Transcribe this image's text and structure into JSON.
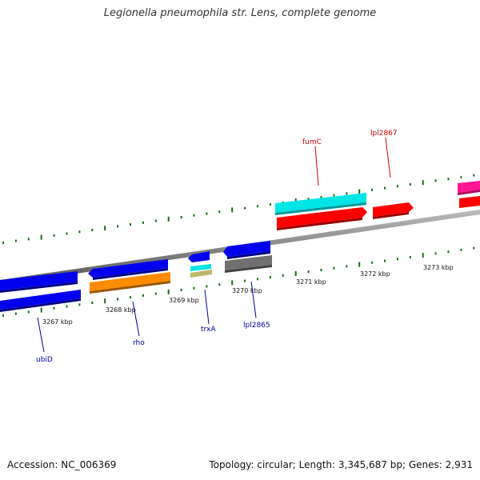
{
  "title": "Legionella pneumophila str. Lens, complete genome",
  "accession_label": "Accession: NC_006369",
  "topology_label": "Topology: circular; Length: 3,345,687 bp; Genes: 2,931",
  "kbp_labels": [
    "3267 kbp",
    "3268 kbp",
    "3269 kbp",
    "3270 kbp",
    "3271 kbp",
    "3272 kbp",
    "3273 kbp"
  ],
  "genes_top": [
    {
      "name": "fumC",
      "color": "#cc0000"
    },
    {
      "name": "lpl2867",
      "color": "#cc0000"
    }
  ],
  "genes_bottom": [
    {
      "name": "ubiD",
      "color": "#0000aa"
    },
    {
      "name": "rho",
      "color": "#0000aa"
    },
    {
      "name": "trxA",
      "color": "#0000aa"
    },
    {
      "name": "lpl2865",
      "color": "#0000aa"
    }
  ],
  "colors": {
    "forward_gene": "#ff0000",
    "reverse_gene": "#0000ee",
    "cog_cyan": "#00e5e5",
    "cog_orange": "#ff8c00",
    "cog_gray": "#707070",
    "cog_magenta": "#ff1493",
    "cog_khaki": "#bdb76b",
    "tick": "#1a6b1a",
    "backbone": "#888888"
  }
}
